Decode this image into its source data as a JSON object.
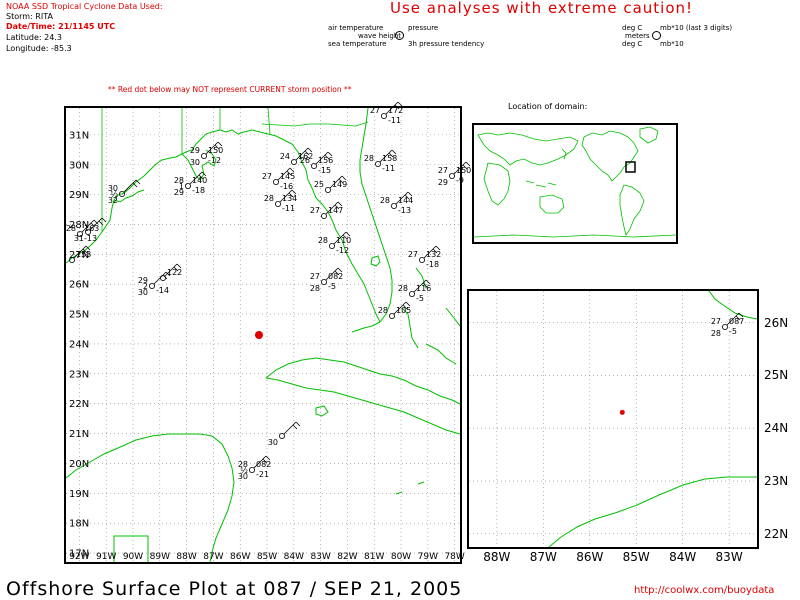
{
  "header": {
    "source": "NOAA SSD Tropical Cyclone Data Used:",
    "storm": "Storm: RITA",
    "datetime": "Date/Time: 21/1145 UTC",
    "latitude": "Latitude: 24.3",
    "longitude": "Longitude: -85.3"
  },
  "caution": "Use analyses with extreme caution!",
  "station_legend": {
    "air_temperature": "air temperature",
    "pressure": "pressure",
    "wave_height": "wave height",
    "sea_temperature": "sea temperature",
    "pressure_tendency": "3h pressure tendency",
    "deg_c_1": "deg C",
    "mb_code": "mb*10 (last 3 digits)",
    "meters": "meters",
    "deg_c_2": "deg C",
    "mb_tendency": "mb*10"
  },
  "warning": "** Red dot below may NOT represent CURRENT storm position **",
  "domain_label": "Location of domain:",
  "main_map": {
    "lat_labels": [
      "31N",
      "30N",
      "29N",
      "28N",
      "27N",
      "26N",
      "25N",
      "24N",
      "23N",
      "22N",
      "21N",
      "20N",
      "19N",
      "18N",
      "17N"
    ],
    "lon_labels": [
      "92W",
      "91W",
      "90W",
      "89W",
      "88W",
      "87W",
      "86W",
      "85W",
      "84W",
      "83W",
      "82W",
      "81W",
      "80W",
      "79W",
      "78W"
    ],
    "storm": {
      "lat": 24.3,
      "lon": -85.3,
      "color": "#e00000"
    },
    "stations": [
      {
        "t": "29",
        "p": "150",
        "w": "",
        "s": "30",
        "tend": "-12"
      },
      {
        "t": "28",
        "p": "140",
        "w": "1",
        "s": "29",
        "tend": "-18"
      },
      {
        "t": "30",
        "p": "",
        "w": "½",
        "s": "32",
        "tend": ""
      },
      {
        "t": "28",
        "p": "163",
        "w": "",
        "s": "",
        "tend": "-13"
      },
      {
        "t": "",
        "p": "",
        "w": "",
        "s": "31",
        "tend": ""
      },
      {
        "t": "",
        "p": "153",
        "w": "",
        "s": "",
        "tend": ""
      },
      {
        "t": "29",
        "p": "",
        "w": "2",
        "s": "30",
        "tend": "-14"
      },
      {
        "t": "",
        "p": "122",
        "w": "",
        "s": "",
        "tend": ""
      },
      {
        "t": "24",
        "p": "162",
        "w": "",
        "s": "",
        "tend": ""
      },
      {
        "t": "26",
        "p": "156",
        "w": "",
        "s": "",
        "tend": "-15"
      },
      {
        "t": "27",
        "p": "145",
        "w": "",
        "s": "",
        "tend": "-16"
      },
      {
        "t": "28",
        "p": "134",
        "w": "",
        "s": "",
        "tend": "-11"
      },
      {
        "t": "25",
        "p": "149",
        "w": "",
        "s": "",
        "tend": ""
      },
      {
        "t": "27",
        "p": "147",
        "w": "",
        "s": "",
        "tend": ""
      },
      {
        "t": "27",
        "p": "172",
        "w": "",
        "s": "",
        "tend": "-11"
      },
      {
        "t": "28",
        "p": "158",
        "w": "",
        "s": "",
        "tend": "-11"
      },
      {
        "t": "27",
        "p": "150",
        "w": "",
        "s": "29",
        "tend": "-9"
      },
      {
        "t": "28",
        "p": "144",
        "w": "",
        "s": "",
        "tend": "-13"
      },
      {
        "t": "27",
        "p": "132",
        "w": "",
        "s": "",
        "tend": "-18"
      },
      {
        "t": "28",
        "p": "110",
        "w": "",
        "s": "",
        "tend": "-12"
      },
      {
        "t": "27",
        "p": "082",
        "w": "",
        "s": "28",
        "tend": "-5"
      },
      {
        "t": "28",
        "p": "116",
        "w": "",
        "s": "",
        "tend": "-5"
      },
      {
        "t": "28",
        "p": "105",
        "w": "",
        "s": "",
        "tend": ""
      },
      {
        "t": "",
        "p": "",
        "w": "",
        "s": "30",
        "tend": ""
      },
      {
        "t": "28",
        "p": "082",
        "w": "½",
        "s": "30",
        "tend": "-21"
      }
    ]
  },
  "inset_map": {
    "lat_labels": [
      "26N",
      "25N",
      "24N",
      "23N",
      "22N"
    ],
    "lon_labels": [
      "88W",
      "87W",
      "86W",
      "85W",
      "84W",
      "83W"
    ],
    "stations": [
      {
        "t": "27",
        "p": "087",
        "w": "",
        "s": "28",
        "tend": "-5"
      }
    ],
    "storm": {
      "lat": 24.3,
      "lon": -85.3,
      "color": "#e00000"
    }
  },
  "footer": {
    "title": "Offshore Surface Plot at 087 / SEP 21, 2005",
    "url": "http://coolwx.com/buoydata"
  },
  "colors": {
    "coast": "#00c000",
    "grid": "#888888",
    "storm": "#e00000",
    "accent_text": "#e00000"
  }
}
